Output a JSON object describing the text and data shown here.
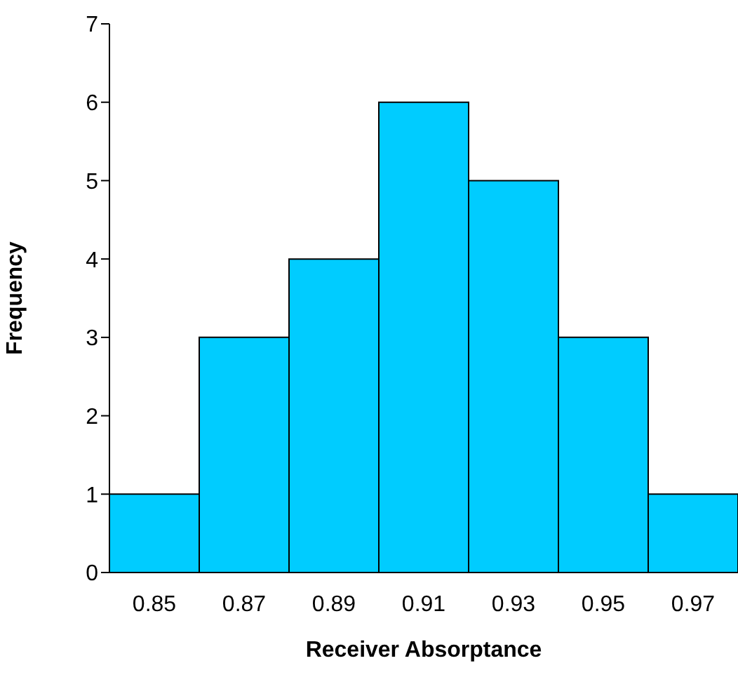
{
  "chart_data": {
    "type": "bar",
    "xlabel": "Receiver Absorptance",
    "ylabel": "Frequency",
    "categories": [
      "0.85",
      "0.87",
      "0.89",
      "0.91",
      "0.93",
      "0.95",
      "0.97"
    ],
    "values": [
      1,
      3,
      4,
      6,
      5,
      3,
      1
    ],
    "color": "#00ccff",
    "ylim": [
      0,
      7
    ],
    "yticks": [
      0,
      1,
      2,
      3,
      4,
      5,
      6,
      7
    ],
    "grid": false,
    "legend": false
  }
}
